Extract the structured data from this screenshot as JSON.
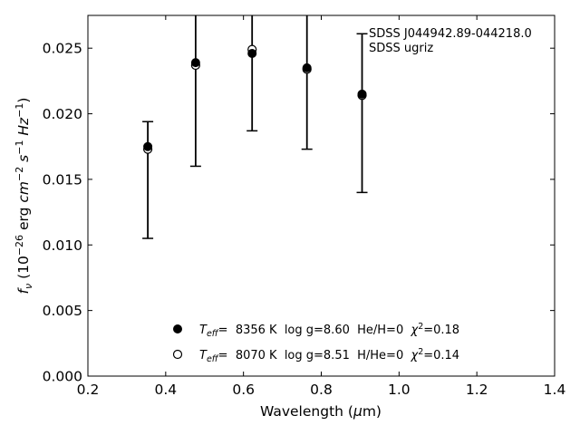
{
  "chart_data": {
    "type": "scatter",
    "title": "",
    "xlabel": "Wavelength (μm)",
    "ylabel": "f_ν (10^-26 erg cm^-2 s^-1 Hz^-1)",
    "xlim": [
      0.2,
      1.4
    ],
    "ylim": [
      0.0,
      0.0275
    ],
    "xticks": [
      "0.2",
      "0.4",
      "0.6",
      "0.8",
      "1.0",
      "1.2",
      "1.4"
    ],
    "xtick_values": [
      0.2,
      0.4,
      0.6,
      0.8,
      1.0,
      1.2,
      1.4
    ],
    "yticks": [
      "0.000",
      "0.005",
      "0.010",
      "0.015",
      "0.020",
      "0.025"
    ],
    "ytick_values": [
      0.0,
      0.005,
      0.01,
      0.015,
      0.02,
      0.025
    ],
    "grid": false,
    "annotation": [
      "SDSS J044942.89-044218.0",
      "SDSS ugriz"
    ],
    "observed": {
      "x": [
        0.354,
        0.477,
        0.6222,
        0.7632,
        0.9049
      ],
      "y": [
        0.0173,
        0.0237,
        0.0249,
        0.0234,
        0.0214
      ],
      "yerr_low": [
        0.0105,
        0.016,
        0.0187,
        0.0173,
        0.014
      ],
      "yerr_high": [
        0.0194,
        0.0275,
        0.0275,
        0.0275,
        0.0261
      ]
    },
    "series": [
      {
        "name": "Teff= 8356 K log g=8.60 He/H=0 χ2=0.18",
        "marker": "filled-circle",
        "x": [
          0.354,
          0.477,
          0.6222,
          0.7632,
          0.9049
        ],
        "y": [
          0.0175,
          0.0239,
          0.0246,
          0.0235,
          0.0215
        ]
      },
      {
        "name": "Teff= 8070 K log g=8.51 H/He=0 χ2=0.14",
        "marker": "open-circle",
        "x": [
          0.354,
          0.477,
          0.6222,
          0.7632,
          0.9049
        ],
        "y": [
          0.0173,
          0.0237,
          0.0249,
          0.0234,
          0.0214
        ]
      }
    ],
    "legend": {
      "placement": "lower-center",
      "entries": [
        {
          "teff_label": "T",
          "teff_sub": "eff",
          "rest": "=  8356 K  log g=8.60  He/H=0  ",
          "chi": "χ",
          "chi_sup": "2",
          "chi_rest": "=0.18"
        },
        {
          "teff_label": "T",
          "teff_sub": "eff",
          "rest": "=  8070 K  log g=8.51  H/He=0  ",
          "chi": "χ",
          "chi_sup": "2",
          "chi_rest": "=0.14"
        }
      ]
    },
    "colors": {
      "marker": "#000000",
      "background": "#ffffff"
    }
  }
}
